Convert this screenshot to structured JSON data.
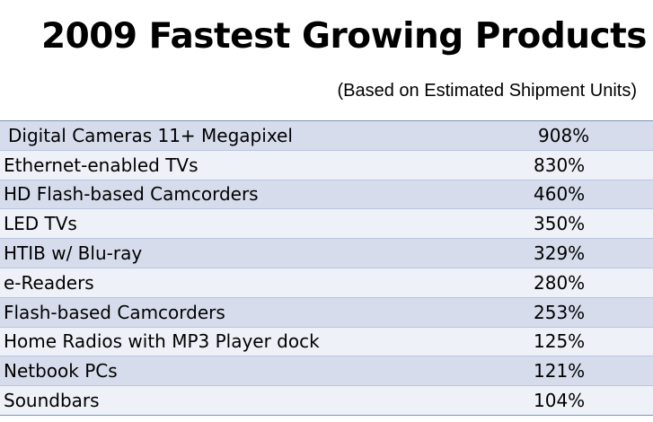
{
  "title": "2009 Fastest Growing Products",
  "subtitle": "(Based on Estimated Shipment Units)",
  "colors": {
    "row_odd": "#d6dcec",
    "row_even": "#eef1f8",
    "border": "#7f93b8"
  },
  "chart_data": {
    "type": "table",
    "title": "2009 Fastest Growing Products",
    "subtitle": "(Based on Estimated Shipment Units)",
    "rows": [
      {
        "product": "Digital Cameras 11+ Megapixel",
        "growth": "908%"
      },
      {
        "product": "Ethernet-enabled TVs",
        "growth": "830%"
      },
      {
        "product": "HD Flash-based Camcorders",
        "growth": "460%"
      },
      {
        "product": "LED TVs",
        "growth": "350%"
      },
      {
        "product": "HTIB w/ Blu-ray",
        "growth": "329%"
      },
      {
        "product": "e-Readers",
        "growth": "280%"
      },
      {
        "product": "Flash-based Camcorders",
        "growth": "253%"
      },
      {
        "product": "Home Radios with MP3 Player dock",
        "growth": "125%"
      },
      {
        "product": "Netbook PCs",
        "growth": "121%"
      },
      {
        "product": "Soundbars",
        "growth": "104%"
      }
    ]
  }
}
